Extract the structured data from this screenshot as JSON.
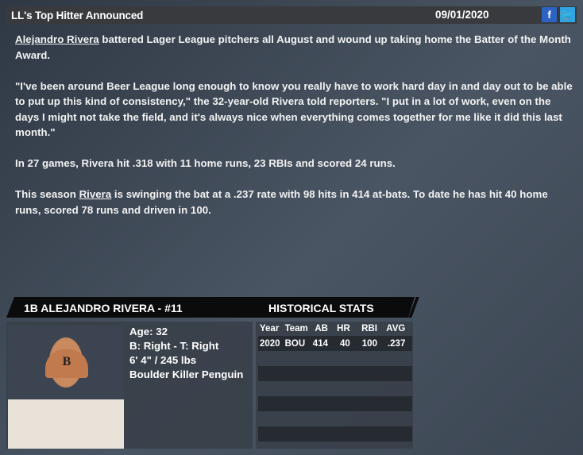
{
  "header": {
    "title": "LL's Top Hitter Announced",
    "date": "09/01/2020",
    "facebook_icon": "f",
    "twitter_icon": "t"
  },
  "article": {
    "p1_link": "Alejandro Rivera",
    "p1_rest": " battered Lager League pitchers all August and wound up taking home the Batter of the Month Award.",
    "p2": "\"I've been around Beer League long enough to know you really have to work hard day in and day out to be able to put up this kind of consistency,\" the 32-year-old Rivera told reporters. \"I put in a lot of work, even on the days I might not take the field, and it's always nice when everything comes together for me like it did this last month.\"",
    "p3": "In 27 games, Rivera hit .318 with 11 home runs, 23 RBIs and scored 24 runs.",
    "p4_pre": "This season ",
    "p4_link": "Rivera",
    "p4_rest": " is swinging the bat at a .237 rate with 98 hits in 414 at-bats. To date he has hit 40 home runs, scored 78 runs and driven in 100."
  },
  "player": {
    "header": "1B ALEJANDRO RIVERA - #11",
    "cap_letter": "B",
    "age": "Age: 32",
    "bats_throws": "B: Right - T: Right",
    "size": "6' 4\" / 245 lbs",
    "team": "Boulder Killer Penguin"
  },
  "stats": {
    "title": "HISTORICAL STATS",
    "columns": [
      "Year",
      "Team",
      "AB",
      "HR",
      "RBI",
      "AVG"
    ],
    "rows": [
      [
        "2020",
        "BOU",
        "414",
        "40",
        "100",
        ".237"
      ]
    ]
  }
}
